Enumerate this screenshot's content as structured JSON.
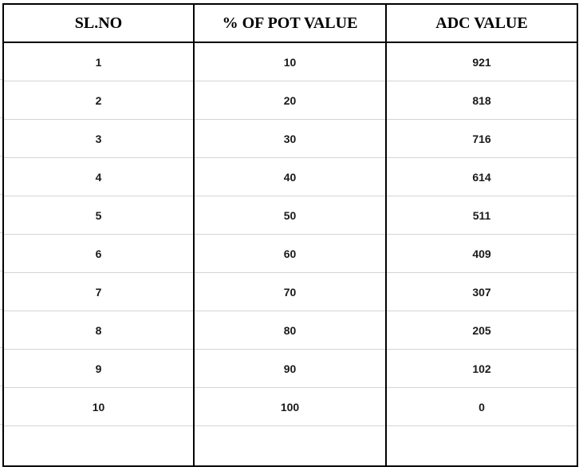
{
  "table": {
    "headers": [
      "SL.NO",
      "% OF POT VALUE",
      "ADC VALUE"
    ],
    "rows": [
      [
        "1",
        "10",
        "921"
      ],
      [
        "2",
        "20",
        "818"
      ],
      [
        "3",
        "30",
        "716"
      ],
      [
        "4",
        "40",
        "614"
      ],
      [
        "5",
        "50",
        "511"
      ],
      [
        "6",
        "60",
        "409"
      ],
      [
        "7",
        "70",
        "307"
      ],
      [
        "8",
        "80",
        "205"
      ],
      [
        "9",
        "90",
        "102"
      ],
      [
        "10",
        "100",
        "0"
      ]
    ]
  },
  "colors": {
    "border": "#000000",
    "gridline": "#d4d4d4",
    "text": "#1a1a1a"
  }
}
